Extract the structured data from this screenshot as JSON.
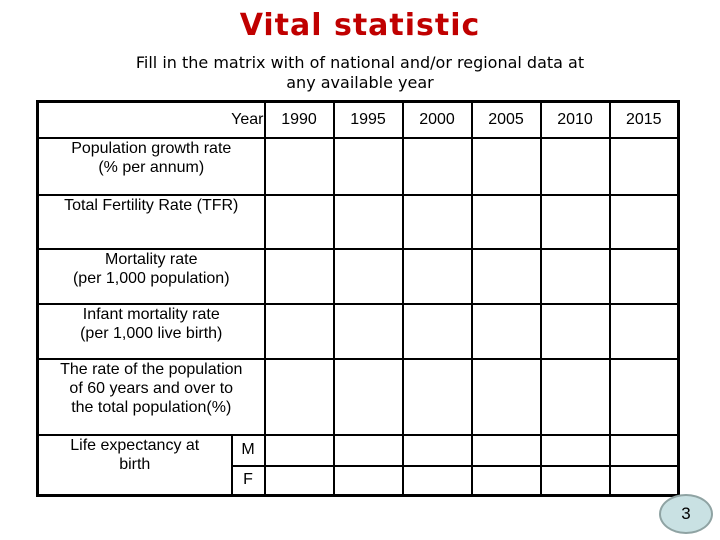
{
  "slide": {
    "title": "Vital statistic",
    "subtitle": [
      "Fill in the matrix with of national and/or regional data at",
      "any available year"
    ],
    "page_number": "3"
  },
  "table": {
    "header": {
      "label": "Year",
      "years": [
        "1990",
        "1995",
        "2000",
        "2005",
        "2010",
        "2015"
      ]
    },
    "rows": [
      {
        "label": [
          "Population growth rate",
          "(% per annum)"
        ],
        "values": [
          "",
          "",
          "",
          "",
          "",
          ""
        ]
      },
      {
        "label": [
          "Total Fertility Rate (TFR)"
        ],
        "values": [
          "",
          "",
          "",
          "",
          "",
          ""
        ]
      },
      {
        "label": [
          "Mortality rate",
          "(per 1,000 population)"
        ],
        "values": [
          "",
          "",
          "",
          "",
          "",
          ""
        ]
      },
      {
        "label": [
          "Infant mortality rate",
          "(per 1,000 live birth)"
        ],
        "values": [
          "",
          "",
          "",
          "",
          "",
          ""
        ]
      },
      {
        "label": [
          "The rate of the population",
          "of 60 years and over to",
          "the total population(%)"
        ],
        "values": [
          "",
          "",
          "",
          "",
          "",
          ""
        ]
      }
    ],
    "life_expectancy": {
      "label": [
        "Life expectancy at",
        "birth"
      ],
      "male_label": "M",
      "female_label": "F",
      "male_values": [
        "",
        "",
        "",
        "",
        "",
        ""
      ],
      "female_values": [
        "",
        "",
        "",
        "",
        "",
        ""
      ]
    }
  },
  "colors": {
    "title_red": "#c00000",
    "table_border": "#000000",
    "badge_fill": "#c9e1e3",
    "badge_border": "#8fa3a3"
  }
}
